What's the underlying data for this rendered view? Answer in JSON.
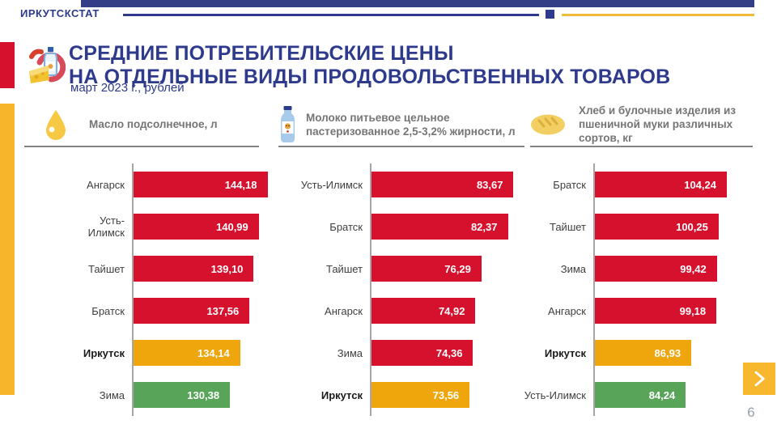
{
  "brand": {
    "logo_text": "ИРКУТСКСТАТ"
  },
  "header": {
    "title_line1": "СРЕДНИЕ ПОТРЕБИТЕЛЬСКИЕ ЦЕНЫ",
    "title_line2": "НА ОТДЕЛЬНЫЕ ВИДЫ ПРОДОВОЛЬСТВЕННЫХ ТОВАРОВ",
    "subtitle": "март 2023 г., рублей"
  },
  "colors": {
    "red": "#D6112E",
    "yellow": "#EFA50C",
    "green": "#58A559",
    "navy": "#2E3A8C",
    "gold": "#F7B52C"
  },
  "chart_data": [
    {
      "type": "bar",
      "orientation": "horizontal",
      "title": "Масло подсолнечное, л",
      "icon": "oil-drop-icon",
      "categories": [
        "Ангарск",
        "Усть-Илимск",
        "Тайшет",
        "Братск",
        "Иркутск",
        "Зима"
      ],
      "values": [
        144.18,
        140.99,
        139.1,
        137.56,
        134.14,
        130.38
      ],
      "value_labels": [
        "144,18",
        "140,99",
        "139,10",
        "137,56",
        "134,14",
        "130,38"
      ],
      "bar_colors": [
        "red",
        "red",
        "red",
        "red",
        "yellow",
        "green"
      ],
      "bold_labels": [
        false,
        false,
        false,
        false,
        true,
        false
      ],
      "xlabel": "",
      "ylabel": "",
      "xlim": [
        95,
        147
      ],
      "grid": false,
      "legend": false
    },
    {
      "type": "bar",
      "orientation": "horizontal",
      "title": "Молоко питьевое цельное пастеризованное 2,5-3,2% жирности, л",
      "icon": "milk-bottle-icon",
      "categories": [
        "Усть-Илимск",
        "Братск",
        "Тайшет",
        "Ангарск",
        "Зима",
        "Иркутск"
      ],
      "values": [
        83.67,
        82.37,
        76.29,
        74.92,
        74.36,
        73.56
      ],
      "value_labels": [
        "83,67",
        "82,37",
        "76,29",
        "74,92",
        "74,36",
        "73,56"
      ],
      "bar_colors": [
        "red",
        "red",
        "red",
        "red",
        "red",
        "yellow"
      ],
      "bold_labels": [
        false,
        false,
        false,
        false,
        false,
        true
      ],
      "xlabel": "",
      "ylabel": "",
      "xlim": [
        51,
        86
      ],
      "grid": false,
      "legend": false
    },
    {
      "type": "bar",
      "orientation": "horizontal",
      "title": "Хлеб и булочные изделия из пшеничной муки различных сортов, кг",
      "icon": "bread-icon",
      "categories": [
        "Братск",
        "Тайшет",
        "Зима",
        "Ангарск",
        "Иркутск",
        "Усть-Илимск"
      ],
      "values": [
        104.24,
        100.25,
        99.42,
        99.18,
        86.93,
        84.24
      ],
      "value_labels": [
        "104,24",
        "100,25",
        "99,42",
        "99,18",
        "86,93",
        "84,24"
      ],
      "bar_colors": [
        "red",
        "red",
        "red",
        "red",
        "yellow",
        "green"
      ],
      "bold_labels": [
        false,
        false,
        false,
        false,
        true,
        false
      ],
      "xlabel": "",
      "ylabel": "",
      "xlim": [
        40,
        107
      ],
      "grid": false,
      "legend": false
    }
  ],
  "footer": {
    "page_number": "6"
  }
}
